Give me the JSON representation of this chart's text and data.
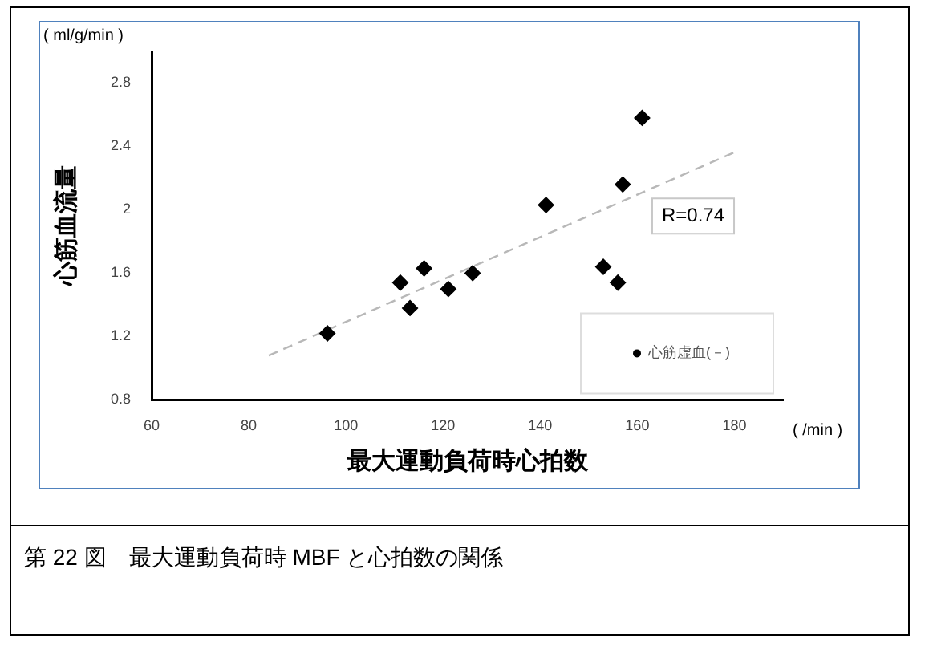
{
  "chart_data": {
    "type": "scatter",
    "xlabel": "最大運動負荷時心拍数",
    "ylabel": "心筋血流量",
    "x": [
      96.2,
      111.2,
      113.2,
      116.1,
      121.1,
      126.1,
      141.2,
      153.0,
      156.0,
      157.0,
      161.0
    ],
    "series": [
      {
        "name": "心筋虚血(－)",
        "color": "#000000",
        "values": [
          1.22,
          1.54,
          1.38,
          1.63,
          1.5,
          1.6,
          2.03,
          1.64,
          1.54,
          2.16,
          2.58
        ]
      },
      {
        "type": "line",
        "color": "#b8b8b8",
        "line_style": "dashed",
        "marker": "none",
        "x": [
          84.1,
          180.5
        ],
        "values": [
          1.08,
          2.37
        ]
      }
    ],
    "xlim": [
      60,
      190
    ],
    "xticks": [
      60,
      80,
      100,
      120,
      140,
      160,
      180
    ],
    "ylim": [
      0.8,
      3.0
    ],
    "yticks": [
      0.8,
      1.2,
      1.6,
      2,
      2.4,
      2.8
    ],
    "marker": "diamond",
    "legend": "bottom right",
    "grid": false,
    "annotations": [
      "( ml/g/min )",
      "( /min )",
      "R=0.74",
      "第 22 図　最大運動負荷時 MBF と心拍数の関係"
    ]
  }
}
